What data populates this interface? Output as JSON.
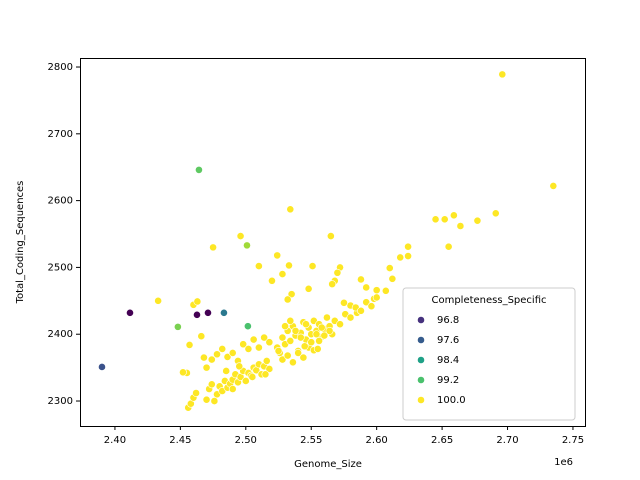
{
  "chart_data": {
    "type": "scatter",
    "x_label": "Genome_Size",
    "y_label": "Total_Coding_Sequences",
    "x_offset_label": "1e6",
    "xlim": [
      2.3733,
      2.7592
    ],
    "ylim": [
      2262.6,
      2813.5
    ],
    "xticks": [
      {
        "value": 2.4,
        "label": "2.40"
      },
      {
        "value": 2.45,
        "label": "2.45"
      },
      {
        "value": 2.5,
        "label": "2.50"
      },
      {
        "value": 2.55,
        "label": "2.55"
      },
      {
        "value": 2.6,
        "label": "2.60"
      },
      {
        "value": 2.65,
        "label": "2.65"
      },
      {
        "value": 2.7,
        "label": "2.70"
      },
      {
        "value": 2.75,
        "label": "2.75"
      }
    ],
    "yticks": [
      2300,
      2400,
      2500,
      2600,
      2700,
      2800
    ],
    "legend": {
      "title": "Completeness_Specific",
      "position": "lower right",
      "entries": [
        {
          "label": "96.8",
          "color": "#46327e"
        },
        {
          "label": "97.6",
          "color": "#365c8d"
        },
        {
          "label": "98.4",
          "color": "#1fa187"
        },
        {
          "label": "99.2",
          "color": "#4ac16d"
        },
        {
          "label": "100.0",
          "color": "#fde725"
        }
      ]
    },
    "x": [
      2.4115,
      2.4627,
      2.4711,
      2.3901,
      2.4833,
      2.4642,
      2.4481,
      2.5016,
      2.5009,
      2.696,
      2.735,
      2.534,
      2.475,
      2.496,
      2.565,
      2.433,
      2.455,
      2.452,
      2.457,
      2.466,
      2.46,
      2.463,
      2.468,
      2.645,
      2.652,
      2.659,
      2.664,
      2.677,
      2.691,
      2.655,
      2.624,
      2.624,
      2.618,
      2.61,
      2.612,
      2.607,
      2.598,
      2.6,
      2.592,
      2.588,
      2.585,
      2.58,
      2.575,
      2.572,
      2.57,
      2.568,
      2.566,
      2.551,
      2.548,
      2.533,
      2.524,
      2.51,
      2.528,
      2.535,
      2.532,
      2.52,
      2.456,
      2.458,
      2.46,
      2.462,
      2.47,
      2.472,
      2.474,
      2.476,
      2.478,
      2.48,
      2.482,
      2.484,
      2.486,
      2.488,
      2.49,
      2.492,
      2.494,
      2.496,
      2.498,
      2.5,
      2.502,
      2.504,
      2.506,
      2.508,
      2.51,
      2.512,
      2.514,
      2.516,
      2.518,
      2.47,
      2.474,
      2.478,
      2.482,
      2.486,
      2.49,
      2.494,
      2.498,
      2.502,
      2.506,
      2.51,
      2.514,
      2.518,
      2.524,
      2.526,
      2.528,
      2.53,
      2.532,
      2.534,
      2.536,
      2.538,
      2.54,
      2.542,
      2.544,
      2.546,
      2.548,
      2.55,
      2.552,
      2.554,
      2.556,
      2.558,
      2.56,
      2.562,
      2.564,
      2.566,
      2.528,
      2.532,
      2.536,
      2.54,
      2.544,
      2.548,
      2.552,
      2.556,
      2.56,
      2.564,
      2.568,
      2.572,
      2.576,
      2.58,
      2.584,
      2.588,
      2.592,
      2.596,
      2.6,
      2.53,
      2.534,
      2.538,
      2.542,
      2.546,
      2.55,
      2.554,
      2.558,
      2.485,
      2.49,
      2.495,
      2.505,
      2.515,
      2.525,
      2.545,
      2.555
    ],
    "values": [
      2432,
      2429,
      2432,
      2351,
      2432,
      2646,
      2411,
      2412,
      2533,
      2789,
      2622,
      2587,
      2530,
      2547,
      2547,
      2450,
      2342,
      2343,
      2384,
      2397,
      2444,
      2449,
      2365,
      2572,
      2572,
      2578,
      2562,
      2570,
      2581,
      2531,
      2531,
      2517,
      2515,
      2499,
      2483,
      2465,
      2453,
      2466,
      2470,
      2482,
      2432,
      2443,
      2447,
      2500,
      2492,
      2480,
      2475,
      2502,
      2468,
      2503,
      2518,
      2502,
      2490,
      2460,
      2452,
      2480,
      2290,
      2296,
      2305,
      2312,
      2302,
      2318,
      2325,
      2300,
      2310,
      2322,
      2315,
      2330,
      2320,
      2326,
      2332,
      2340,
      2328,
      2336,
      2345,
      2330,
      2342,
      2338,
      2350,
      2346,
      2355,
      2340,
      2352,
      2360,
      2348,
      2350,
      2362,
      2370,
      2378,
      2366,
      2372,
      2360,
      2385,
      2378,
      2392,
      2380,
      2395,
      2388,
      2380,
      2372,
      2395,
      2385,
      2405,
      2390,
      2412,
      2398,
      2375,
      2402,
      2418,
      2392,
      2410,
      2400,
      2420,
      2405,
      2415,
      2396,
      2408,
      2425,
      2412,
      2400,
      2362,
      2368,
      2358,
      2372,
      2365,
      2380,
      2376,
      2390,
      2398,
      2405,
      2420,
      2415,
      2430,
      2425,
      2440,
      2435,
      2448,
      2442,
      2455,
      2412,
      2420,
      2405,
      2395,
      2415,
      2388,
      2400,
      2410,
      2345,
      2318,
      2352,
      2336,
      2340,
      2375,
      2382,
      2378
    ],
    "point_colors": [
      "#440154",
      "#440154",
      "#440154",
      "#3b528b",
      "#2a788e",
      "#5ec962",
      "#7ad151",
      "#4ac16d",
      "#a0da39",
      "#fde725",
      "#fde725",
      "#fde725",
      "#fde725",
      "#fde725",
      "#fde725",
      "#fde725",
      "#fde725",
      "#fde725",
      "#fde725",
      "#fde725",
      "#fde725",
      "#fde725",
      "#fde725",
      "#fde725",
      "#fde725",
      "#fde725",
      "#fde725",
      "#fde725",
      "#fde725",
      "#fde725",
      "#fde725",
      "#fde725",
      "#fde725",
      "#fde725",
      "#fde725",
      "#fde725",
      "#fde725",
      "#fde725",
      "#fde725",
      "#fde725",
      "#fde725",
      "#fde725",
      "#fde725",
      "#fde725",
      "#fde725",
      "#fde725",
      "#fde725",
      "#fde725",
      "#fde725",
      "#fde725",
      "#fde725",
      "#fde725",
      "#fde725",
      "#fde725",
      "#fde725",
      "#fde725",
      "#fde725",
      "#fde725",
      "#fde725",
      "#fde725",
      "#fde725",
      "#fde725",
      "#fde725",
      "#fde725",
      "#fde725",
      "#fde725",
      "#fde725",
      "#fde725",
      "#fde725",
      "#fde725",
      "#fde725",
      "#fde725",
      "#fde725",
      "#fde725",
      "#fde725",
      "#fde725",
      "#fde725",
      "#fde725",
      "#fde725",
      "#fde725",
      "#fde725",
      "#fde725",
      "#fde725",
      "#fde725",
      "#fde725",
      "#fde725",
      "#fde725",
      "#fde725",
      "#fde725",
      "#fde725",
      "#fde725",
      "#fde725",
      "#fde725",
      "#fde725",
      "#fde725",
      "#fde725",
      "#fde725",
      "#fde725",
      "#fde725",
      "#fde725",
      "#fde725",
      "#fde725",
      "#fde725",
      "#fde725",
      "#fde725",
      "#fde725",
      "#fde725",
      "#fde725",
      "#fde725",
      "#fde725",
      "#fde725",
      "#fde725",
      "#fde725",
      "#fde725",
      "#fde725",
      "#fde725",
      "#fde725",
      "#fde725",
      "#fde725",
      "#fde725",
      "#fde725",
      "#fde725",
      "#fde725",
      "#fde725",
      "#fde725",
      "#fde725",
      "#fde725",
      "#fde725",
      "#fde725",
      "#fde725",
      "#fde725",
      "#fde725",
      "#fde725",
      "#fde725",
      "#fde725",
      "#fde725",
      "#fde725",
      "#fde725",
      "#fde725",
      "#fde725",
      "#fde725",
      "#fde725",
      "#fde725",
      "#fde725",
      "#fde725",
      "#fde725",
      "#fde725",
      "#fde725",
      "#fde725",
      "#fde725",
      "#fde725",
      "#fde725",
      "#fde725",
      "#fde725",
      "#fde725"
    ]
  }
}
